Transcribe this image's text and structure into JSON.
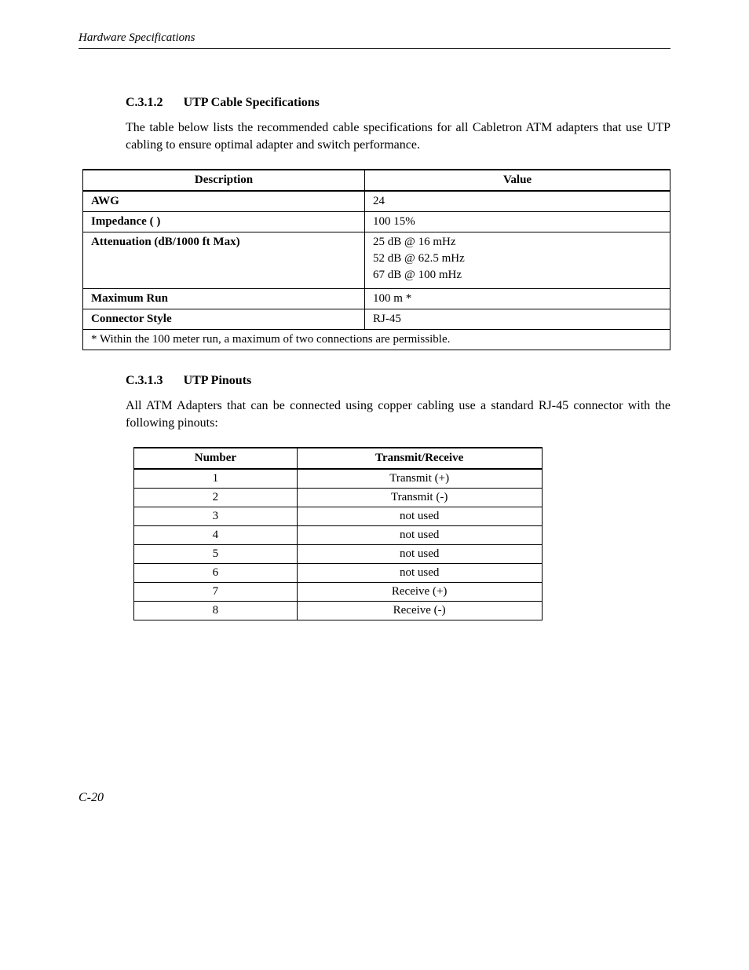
{
  "page": {
    "header": "Hardware Specifications",
    "footer": "C-20"
  },
  "section1": {
    "number": "C.3.1.2",
    "title": "UTP Cable Specifications",
    "paragraph": "The table below lists the recommended cable specifications for all Cabletron ATM adapters that use UTP cabling to ensure optimal adapter and switch performance."
  },
  "spec_table": {
    "columns": [
      "Description",
      "Value"
    ],
    "rows": [
      {
        "desc": "AWG",
        "value": "24"
      },
      {
        "desc": "Impedance (   )",
        "value": "100   15%"
      },
      {
        "desc": "Attenuation (dB/1000 ft Max)",
        "value_lines": [
          "25 dB @ 16 mHz",
          "52 dB @ 62.5 mHz",
          "67 dB @ 100 mHz"
        ]
      },
      {
        "desc": "Maximum Run",
        "value": "100 m *"
      },
      {
        "desc": "Connector Style",
        "value": "RJ-45"
      }
    ],
    "footnote": "* Within the 100 meter run, a maximum of two connections are permissible."
  },
  "section2": {
    "number": "C.3.1.3",
    "title": "UTP Pinouts",
    "paragraph": "All  ATM Adapters that can be connected using copper cabling use a standard RJ-45 connector with the following pinouts:"
  },
  "pinout_table": {
    "columns": [
      "Number",
      "Transmit/Receive"
    ],
    "rows": [
      {
        "num": "1",
        "tr": "Transmit (+)"
      },
      {
        "num": "2",
        "tr": "Transmit (-)"
      },
      {
        "num": "3",
        "tr": "not used"
      },
      {
        "num": "4",
        "tr": "not used"
      },
      {
        "num": "5",
        "tr": "not used"
      },
      {
        "num": "6",
        "tr": "not used"
      },
      {
        "num": "7",
        "tr": "Receive (+)"
      },
      {
        "num": "8",
        "tr": "Receive (-)"
      }
    ]
  }
}
